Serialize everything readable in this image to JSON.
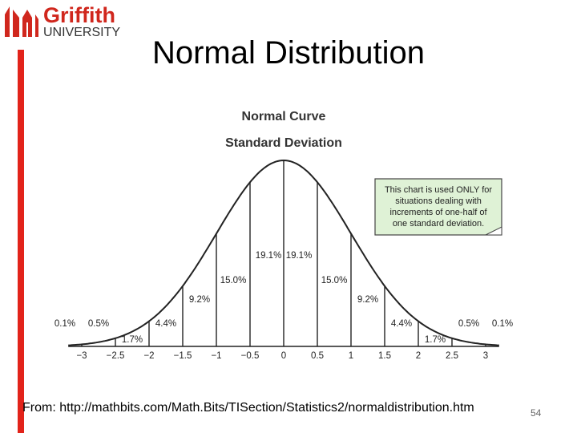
{
  "logo": {
    "word": "Griffith",
    "sub": "UNIVERSITY",
    "brand_color": "#e2231a"
  },
  "slide": {
    "title": "Normal Distribution",
    "source": "From: http://mathbits.com/Math.Bits/TISection/Statistics2/normaldistribution.htm",
    "page_number": "54"
  },
  "chart_data": {
    "type": "area",
    "title": "Normal Curve",
    "subtitle": "Standard Deviation",
    "x_ticks": [
      "−3",
      "−2.5",
      "−2",
      "−1.5",
      "−1",
      "−0.5",
      "0",
      "0.5",
      "1",
      "1.5",
      "2",
      "2.5",
      "3"
    ],
    "x_tick_values": [
      -3,
      -2.5,
      -2,
      -1.5,
      -1,
      -0.5,
      0,
      0.5,
      1,
      1.5,
      2,
      2.5,
      3
    ],
    "xlim": [
      -3.2,
      3.2
    ],
    "divider_x": [
      -3,
      -2.5,
      -2,
      -1.5,
      -1,
      -0.5,
      0,
      0.5,
      1,
      1.5,
      2,
      2.5,
      3
    ],
    "segments": [
      {
        "label": "0.1%",
        "center": -3.25
      },
      {
        "label": "0.5%",
        "center": -2.75
      },
      {
        "label": "1.7%",
        "center": -2.25
      },
      {
        "label": "4.4%",
        "center": -1.75
      },
      {
        "label": "9.2%",
        "center": -1.25
      },
      {
        "label": "15.0%",
        "center": -0.75
      },
      {
        "label": "19.1%",
        "center": -0.25
      },
      {
        "label": "19.1%",
        "center": 0.25
      },
      {
        "label": "15.0%",
        "center": 0.75
      },
      {
        "label": "9.2%",
        "center": 1.25
      },
      {
        "label": "4.4%",
        "center": 1.75
      },
      {
        "label": "1.7%",
        "center": 2.25
      },
      {
        "label": "0.5%",
        "center": 2.75
      },
      {
        "label": "0.1%",
        "center": 3.25
      }
    ],
    "note_lines": [
      "This chart is used ONLY for",
      "situations dealing with",
      "increments of one-half of",
      "one standard deviation."
    ],
    "note_color": "#dff2d6",
    "grid": false,
    "legend": "none"
  }
}
